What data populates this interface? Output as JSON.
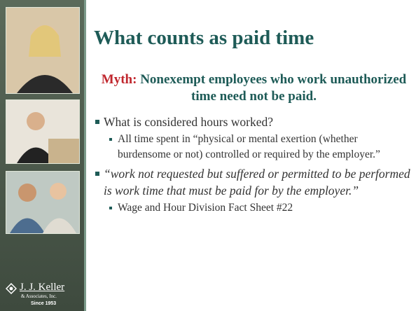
{
  "slide": {
    "title": "What counts as paid time",
    "myth": {
      "label": "Myth:",
      "text": "Nonexempt employees who work unauthorized time need not be paid."
    },
    "bullets": [
      {
        "text": "What is considered hours worked?",
        "sub": [
          "All time spent in “physical or mental exertion (whether burdensome or not) controlled or required by the employer.”"
        ]
      },
      {
        "text": "“work not requested but suffered or permitted to be performed is work time that must be paid for by the employer.”",
        "sub": [
          "Wage and Hour Division Fact Sheet #22"
        ]
      }
    ],
    "logo": {
      "name": "J. J. Keller",
      "company": "& Associates, Inc.",
      "since": "Since 1953"
    }
  }
}
